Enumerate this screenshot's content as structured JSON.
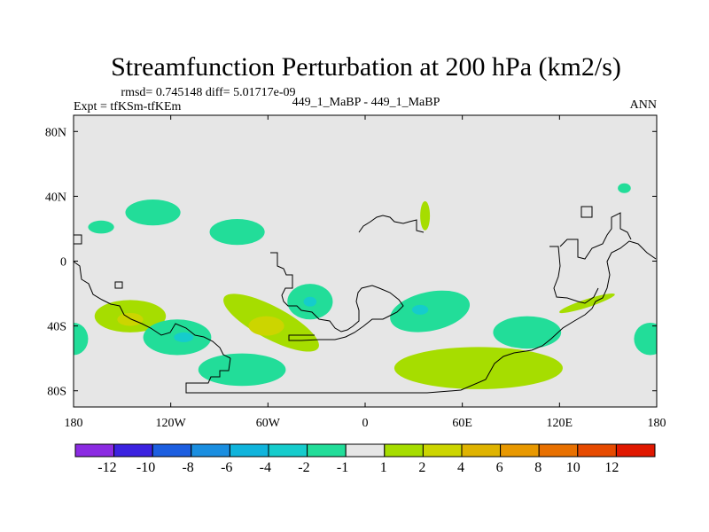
{
  "chart_data": {
    "type": "contour-map",
    "title": "Streamfunction Perturbation at 200 hPa (km2/s)",
    "stats_line": "rmsd= 0.745148 diff= 5.01717e-09",
    "experiment_line": "Expt = tfKSm-tfKEm",
    "case_label": "449_1_MaBP - 449_1_MaBP",
    "season": "ANN",
    "xlim": [
      -180,
      180
    ],
    "ylim": [
      -90,
      90
    ],
    "x_ticks": [
      {
        "value": -180,
        "label": "180"
      },
      {
        "value": -120,
        "label": "120W"
      },
      {
        "value": -60,
        "label": "60W"
      },
      {
        "value": 0,
        "label": "0"
      },
      {
        "value": 60,
        "label": "60E"
      },
      {
        "value": 120,
        "label": "120E"
      },
      {
        "value": 180,
        "label": "180"
      }
    ],
    "y_ticks": [
      {
        "value": 80,
        "label": "80N"
      },
      {
        "value": 40,
        "label": "40N"
      },
      {
        "value": 0,
        "label": "0"
      },
      {
        "value": -40,
        "label": "40S"
      },
      {
        "value": -80,
        "label": "80S"
      }
    ],
    "background_color": "#e6e6e6",
    "colorbar": {
      "colors": [
        "#8b2be2",
        "#3b22e0",
        "#1c5ee0",
        "#1a8ee0",
        "#10b4dc",
        "#15cccc",
        "#22dd99",
        "#e6e6e6",
        "#a6dd00",
        "#ccd500",
        "#dfb300",
        "#e89800",
        "#e87000",
        "#e64a00",
        "#e01800"
      ],
      "labels": [
        "-12",
        "-10",
        "-8",
        "-6",
        "-4",
        "-2",
        "-1",
        "1",
        "2",
        "4",
        "6",
        "8",
        "10",
        "12"
      ]
    },
    "regions": [
      {
        "name": "pacific-subtropical-north",
        "value": -1.5,
        "lon": -163,
        "lat": 21,
        "rx": 8,
        "ry": 4,
        "rot": 0
      },
      {
        "name": "central-pacific-north",
        "value": -1.5,
        "lon": -131,
        "lat": 30,
        "rx": 17,
        "ry": 8,
        "rot": 0
      },
      {
        "name": "east-pacific-north",
        "value": -1.5,
        "lon": -79,
        "lat": 18,
        "rx": 17,
        "ry": 8,
        "rot": 0
      },
      {
        "name": "red-sea-region",
        "value": 1.5,
        "lon": 37,
        "lat": 28,
        "rx": 3,
        "ry": 9,
        "rot": 0
      },
      {
        "name": "sea-of-okhotsk",
        "value": -1.5,
        "lon": 160,
        "lat": 45,
        "rx": 4,
        "ry": 3,
        "rot": 0
      },
      {
        "name": "south-pacific-west",
        "value": 1.5,
        "lon": -145,
        "lat": -34,
        "rx": 22,
        "ry": 10,
        "rot": 0
      },
      {
        "name": "south-pacific-west-core",
        "value": 3,
        "lon": -145,
        "lat": -36,
        "rx": 8,
        "ry": 4,
        "rot": 0
      },
      {
        "name": "south-pacific-central",
        "value": -1.5,
        "lon": -116,
        "lat": -47,
        "rx": 21,
        "ry": 11,
        "rot": 0
      },
      {
        "name": "south-pacific-central-core",
        "value": -3,
        "lon": -112,
        "lat": -47,
        "rx": 6,
        "ry": 3,
        "rot": 0
      },
      {
        "name": "south-america-band",
        "value": 1.5,
        "lon": -58,
        "lat": -38,
        "rx": 33,
        "ry": 10,
        "rot": 28
      },
      {
        "name": "south-america-band-core",
        "value": 3,
        "lon": -61,
        "lat": -40,
        "rx": 11,
        "ry": 6,
        "rot": 0
      },
      {
        "name": "patagonia-negative",
        "value": -1.5,
        "lon": -76,
        "lat": -67,
        "rx": 27,
        "ry": 10,
        "rot": 0
      },
      {
        "name": "south-atlantic-west",
        "value": -1.5,
        "lon": -34,
        "lat": -25,
        "rx": 14,
        "ry": 11,
        "rot": 0
      },
      {
        "name": "south-atlantic-west-core",
        "value": -3,
        "lon": -34,
        "lat": -25,
        "rx": 4,
        "ry": 3,
        "rot": 0
      },
      {
        "name": "southern-africa",
        "value": -1.5,
        "lon": 40,
        "lat": -31,
        "rx": 25,
        "ry": 12,
        "rot": -12
      },
      {
        "name": "southern-africa-core",
        "value": -3,
        "lon": 34,
        "lat": -30,
        "rx": 5,
        "ry": 3,
        "rot": 0
      },
      {
        "name": "indian-ocean-south",
        "value": 1.5,
        "lon": 70,
        "lat": -66,
        "rx": 52,
        "ry": 13,
        "rot": 0
      },
      {
        "name": "indian-ocean-south-east",
        "value": -1.5,
        "lon": 100,
        "lat": -44,
        "rx": 21,
        "ry": 10,
        "rot": 0
      },
      {
        "name": "australia-east",
        "value": 1.5,
        "lon": 137,
        "lat": -26,
        "rx": 18,
        "ry": 2.5,
        "rot": -18
      },
      {
        "name": "far-southeast-pacific",
        "value": -1.5,
        "lon": 176,
        "lat": -48,
        "rx": 10,
        "ry": 10,
        "rot": 0
      },
      {
        "name": "far-southwest-pacific",
        "value": -1.5,
        "lon": -180,
        "lat": -48,
        "rx": 9,
        "ry": 10,
        "rot": 0
      }
    ]
  }
}
